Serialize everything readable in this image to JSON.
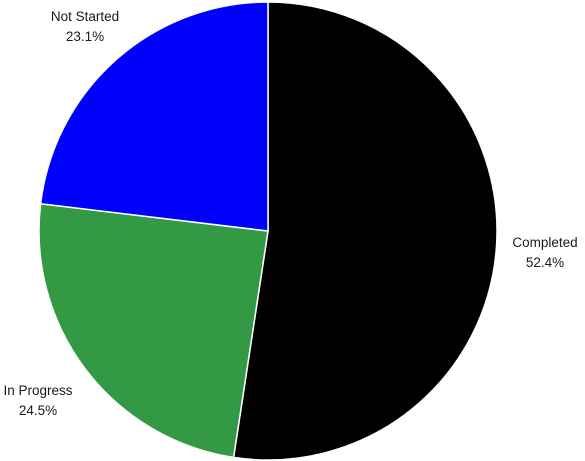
{
  "chart_data": {
    "type": "pie",
    "slices": [
      {
        "label": "Completed",
        "value": 52.4,
        "display": "52.4%",
        "color": "#000000"
      },
      {
        "label": "In Progress",
        "value": 24.5,
        "display": "24.5%",
        "color": "#339944"
      },
      {
        "label": "Not Started",
        "value": 23.1,
        "display": "23.1%",
        "color": "#0000ff"
      }
    ],
    "start": "12 o'clock",
    "direction": "clockwise",
    "legend": "none",
    "labels": "outside, category name above percentage"
  }
}
